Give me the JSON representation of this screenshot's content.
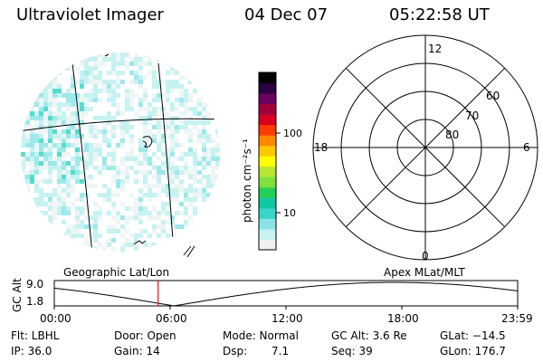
{
  "header": {
    "instrument": "Ultraviolet Imager",
    "date": "04 Dec 07",
    "time": "05:22:58 UT"
  },
  "colorbar": {
    "unit_label": "photon cm⁻²s⁻¹",
    "ticks": [
      "100",
      "10"
    ],
    "colors": [
      "#f0f0f0",
      "#c6f2f2",
      "#8be3e6",
      "#3bd6c8",
      "#10c8a0",
      "#22d055",
      "#7ee03a",
      "#b4e632",
      "#ffff00",
      "#ffc800",
      "#ff8800",
      "#ff3c00",
      "#d80020",
      "#a0003c",
      "#6a0060",
      "#2a0040",
      "#000000"
    ]
  },
  "polar": {
    "mlt_labels": [
      "12",
      "18",
      "6",
      "0"
    ],
    "lat_labels": [
      "60",
      "70",
      "80"
    ]
  },
  "captions": {
    "left": "Geographic Lat/Lon",
    "right": "Apex MLat/MLT"
  },
  "timeline": {
    "ylabel": "GC Alt",
    "yticks": [
      "9.0",
      "1.8"
    ],
    "xticks": [
      "00:00",
      "06:00",
      "12:00",
      "18:00",
      "23:59"
    ],
    "current_marker_hours": 5.38,
    "marker_color": "#ff0000"
  },
  "info": {
    "flt": "Flt: LBHL",
    "ip": "IP: 36.0",
    "door": "Door: Open",
    "gain": "Gain: 14",
    "mode": "Mode: Normal",
    "dsp": "Dsp:",
    "dsp_value": "7.1",
    "gc_alt": "GC Alt: 3.6 Re",
    "seq": "Seq: 39",
    "glat": "GLat: −14.5",
    "glon": "GLon: 176.7"
  }
}
